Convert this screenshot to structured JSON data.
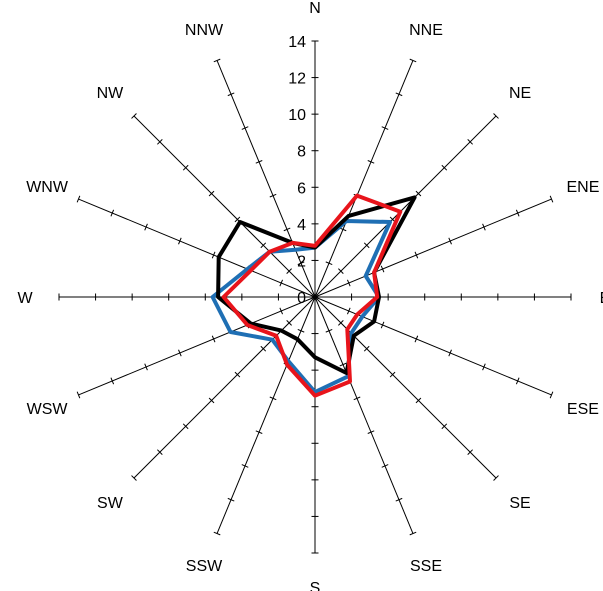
{
  "chart_data": {
    "type": "radar",
    "title": "",
    "directions": [
      "N",
      "NNE",
      "NE",
      "ENE",
      "E",
      "ESE",
      "SE",
      "SSE",
      "S",
      "SSW",
      "SW",
      "WSW",
      "W",
      "WNW",
      "NW",
      "NNW"
    ],
    "radial_axis": {
      "min": 0,
      "max": 14,
      "ticks": [
        0,
        2,
        4,
        6,
        8,
        10,
        12,
        14
      ]
    },
    "grid": false,
    "legend": "none",
    "series": [
      {
        "color": "#1f6fb4",
        "values": [
          2.7,
          4.5,
          5.8,
          3.0,
          3.5,
          2.8,
          2.8,
          4.7,
          5.2,
          3.8,
          3.3,
          5.0,
          5.6,
          4.0,
          3.5,
          2.8
        ]
      },
      {
        "color": "#000000",
        "values": [
          2.7,
          4.8,
          7.7,
          3.5,
          3.5,
          3.5,
          3.0,
          4.5,
          3.3,
          2.5,
          2.6,
          3.8,
          5.3,
          5.7,
          5.8,
          3.2
        ]
      },
      {
        "color": "#e8141b",
        "values": [
          2.8,
          6.0,
          6.6,
          3.5,
          3.4,
          2.5,
          2.5,
          5.0,
          5.4,
          4.0,
          3.0,
          4.0,
          5.0,
          3.8,
          3.5,
          3.2
        ]
      }
    ]
  }
}
